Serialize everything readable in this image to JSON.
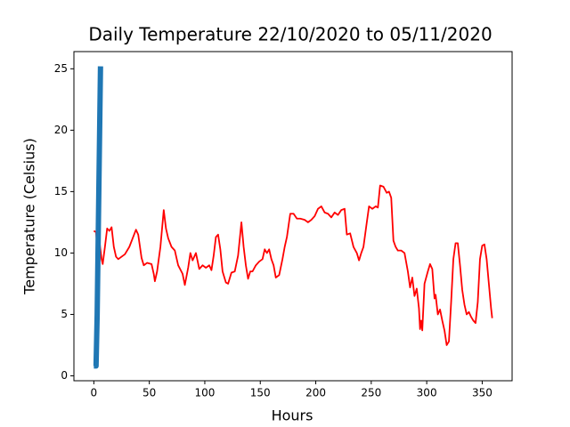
{
  "chart_data": {
    "type": "line",
    "title": "Daily Temperature 22/10/2020 to 05/11/2020",
    "xlabel": "Hours",
    "ylabel": "Temperature (Celsius)",
    "xlim": [
      -17.95,
      376.95
    ],
    "ylim": [
      -0.4,
      26.4
    ],
    "xticks": [
      0,
      50,
      100,
      150,
      200,
      250,
      300,
      350
    ],
    "yticks": [
      0,
      5,
      10,
      15,
      20,
      25
    ],
    "series": [
      {
        "color": "#ff0000",
        "width": 1.8,
        "x": [
          0,
          2,
          3,
          5,
          7,
          8,
          10,
          12,
          14,
          16,
          18,
          20,
          22,
          25,
          28,
          32,
          35,
          38,
          40,
          43,
          45,
          48,
          52,
          54,
          55,
          57,
          60,
          62,
          63,
          65,
          67,
          70,
          73,
          76,
          80,
          82,
          85,
          87,
          89,
          92,
          95,
          98,
          101,
          104,
          106,
          108,
          110,
          112,
          114,
          116,
          119,
          121,
          124,
          127,
          130,
          133,
          135,
          137,
          139,
          141,
          143,
          146,
          149,
          152,
          154,
          156,
          158,
          160,
          162,
          164,
          167,
          170,
          172,
          174,
          177,
          180,
          183,
          186,
          190,
          193,
          196,
          199,
          202,
          205,
          208,
          211,
          214,
          217,
          220,
          223,
          226,
          228,
          231,
          234,
          237,
          239,
          241,
          243,
          246,
          248,
          251,
          254,
          256,
          258,
          261,
          264,
          266,
          268,
          270,
          272,
          274,
          277,
          280,
          283,
          285,
          287,
          289,
          291,
          293,
          294,
          295,
          296,
          298,
          301,
          303,
          305,
          307,
          308,
          310,
          312,
          314,
          316,
          318,
          320,
          322,
          324,
          326,
          328,
          330,
          332,
          334,
          336,
          338,
          340,
          342,
          344,
          346,
          348,
          350,
          352,
          354,
          356,
          358,
          359
        ],
        "values": [
          11.8,
          11.7,
          10.5,
          11,
          9.5,
          9.1,
          10.5,
          12,
          11.8,
          12.1,
          10.5,
          9.7,
          9.5,
          9.7,
          9.9,
          10.5,
          11.2,
          11.9,
          11.5,
          9.6,
          9.0,
          9.2,
          9.1,
          8.3,
          7.7,
          8.5,
          10.5,
          12.5,
          13.5,
          12,
          11.2,
          10.5,
          10.2,
          9,
          8.3,
          7.4,
          8.8,
          10,
          9.4,
          10,
          8.7,
          9.0,
          8.8,
          9,
          8.6,
          9.8,
          11.3,
          11.5,
          10.3,
          8.5,
          7.6,
          7.5,
          8.4,
          8.5,
          9.8,
          12.5,
          10.5,
          9,
          7.9,
          8.5,
          8.5,
          9,
          9.3,
          9.5,
          10.3,
          10,
          10.3,
          9.5,
          9.0,
          8.0,
          8.2,
          9.5,
          10.5,
          11.3,
          13.2,
          13.2,
          12.8,
          12.8,
          12.7,
          12.5,
          12.7,
          13,
          13.6,
          13.8,
          13.3,
          13.2,
          12.9,
          13.3,
          13.1,
          13.5,
          13.6,
          11.5,
          11.6,
          10.5,
          10.0,
          9.4,
          10,
          10.5,
          12.5,
          13.8,
          13.6,
          13.8,
          13.7,
          15.5,
          15.4,
          14.9,
          15.0,
          14.5,
          11,
          10.5,
          10.2,
          10.2,
          10,
          8.5,
          7.2,
          8,
          6.5,
          7.1,
          5.5,
          3.8,
          4.5,
          3.7,
          7.5,
          8.5,
          9.1,
          8.7,
          6.3,
          6.6,
          5,
          5.4,
          4.5,
          3.7,
          2.5,
          2.8,
          6,
          9.5,
          10.8,
          10.8,
          9,
          7,
          5.8,
          5.0,
          5.2,
          4.8,
          4.5,
          4.3,
          6,
          9.5,
          10.6,
          10.7,
          9.5,
          7.5,
          5.5,
          4.7
        ]
      },
      {
        "color": "#1f77b4",
        "width": 6,
        "x": [
          0,
          2,
          3,
          6
        ],
        "values": [
          0.8,
          0.8,
          5,
          25.2
        ]
      }
    ]
  }
}
